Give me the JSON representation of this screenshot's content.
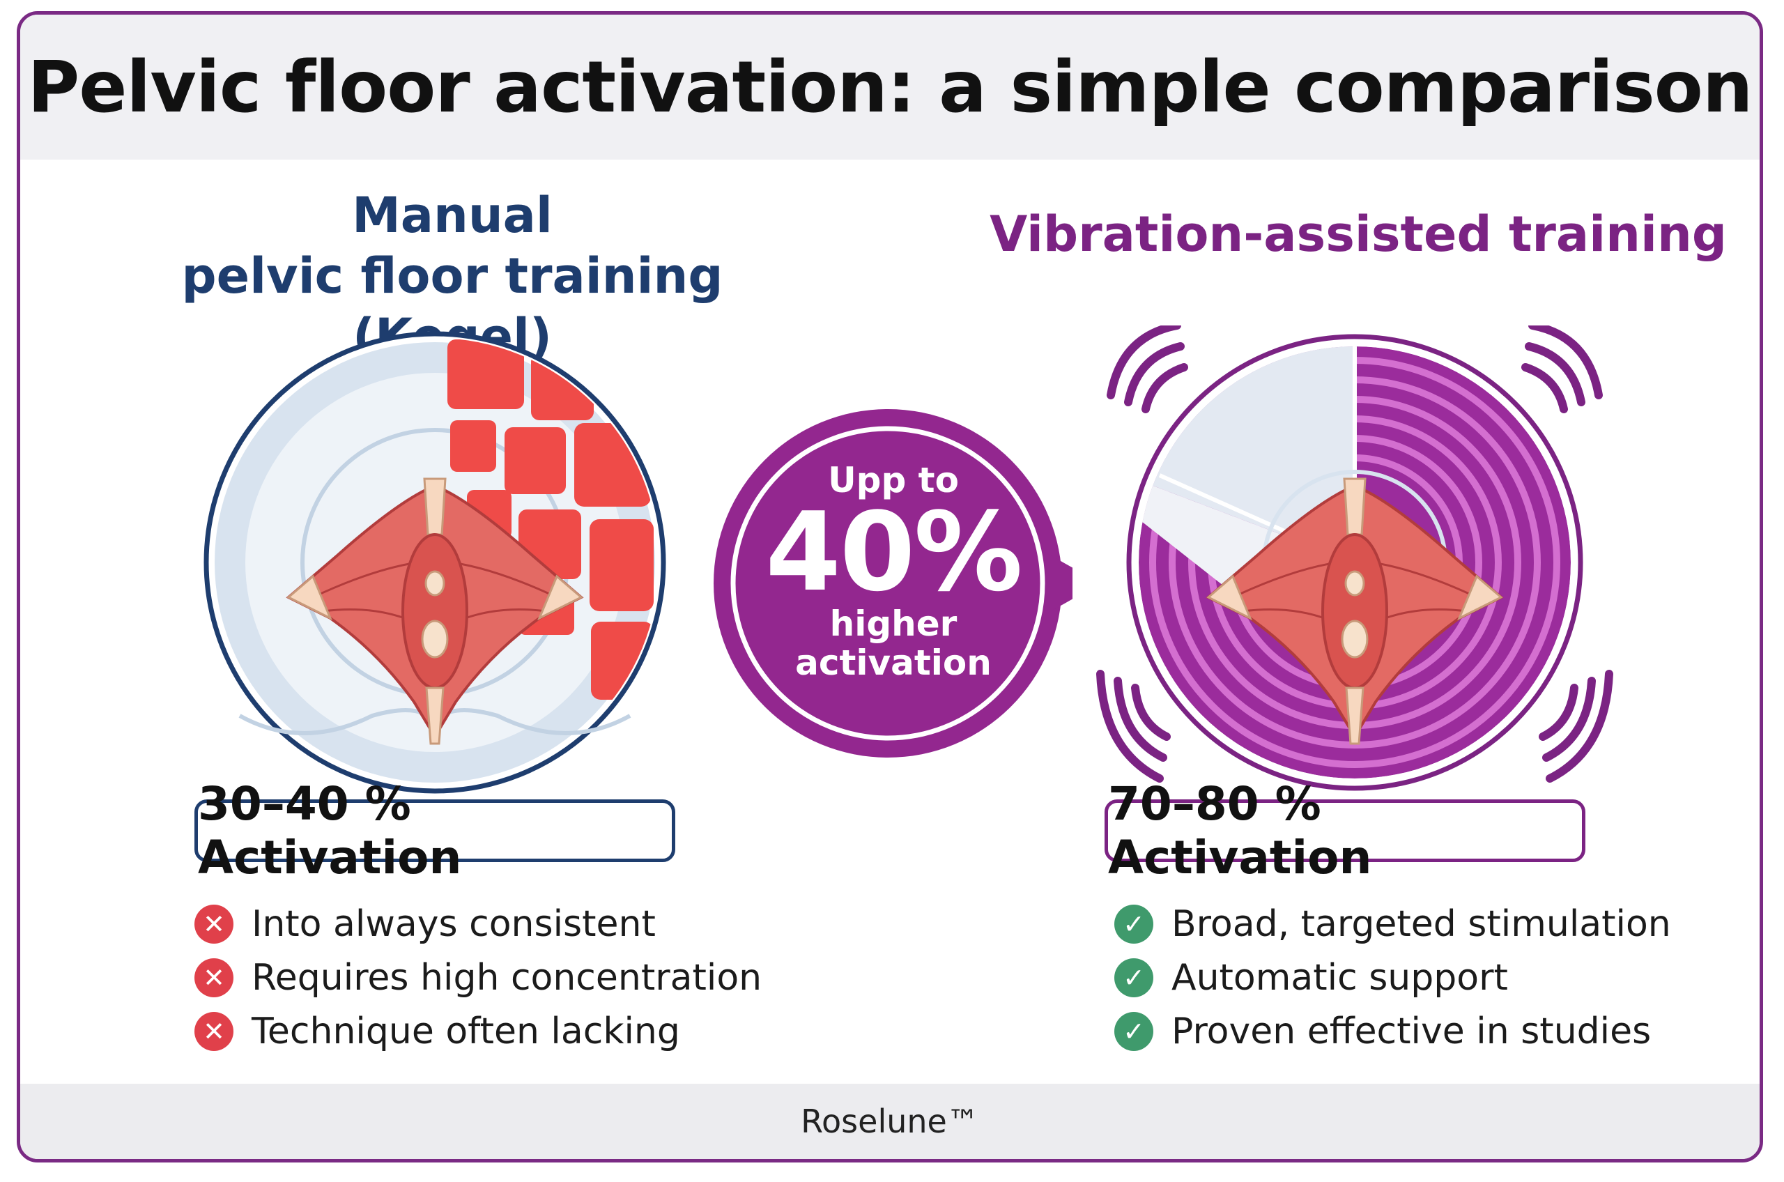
{
  "title": "Pelvic floor activation: a simple comparison",
  "left": {
    "heading_line1": "Manual",
    "heading_line2": "pelvic floor training (Kegel)",
    "activation": "30–40 % Activation",
    "items": [
      "Into always consistent",
      "Requires high concentration",
      "Technique often lacking"
    ]
  },
  "right": {
    "heading": "Vibration-assisted training",
    "activation": "70–80 % Activation",
    "items": [
      "Broad, targeted stimulation",
      "Automatic support",
      "Proven effective in studies"
    ]
  },
  "bubble": {
    "line1": "Upp to",
    "big": "40%",
    "line3": "higher",
    "line4": "activation"
  },
  "brand": "Roselune™",
  "icons": {
    "negative": "cross-icon",
    "positive": "check-icon",
    "vibration": "vibration-waves-icon",
    "anatomy": "pelvic-floor-muscle-illustration"
  },
  "colors": {
    "navy": "#1e3d6e",
    "purple": "#7b2383",
    "red": "#ef4b48",
    "green": "#3f9a6c"
  }
}
